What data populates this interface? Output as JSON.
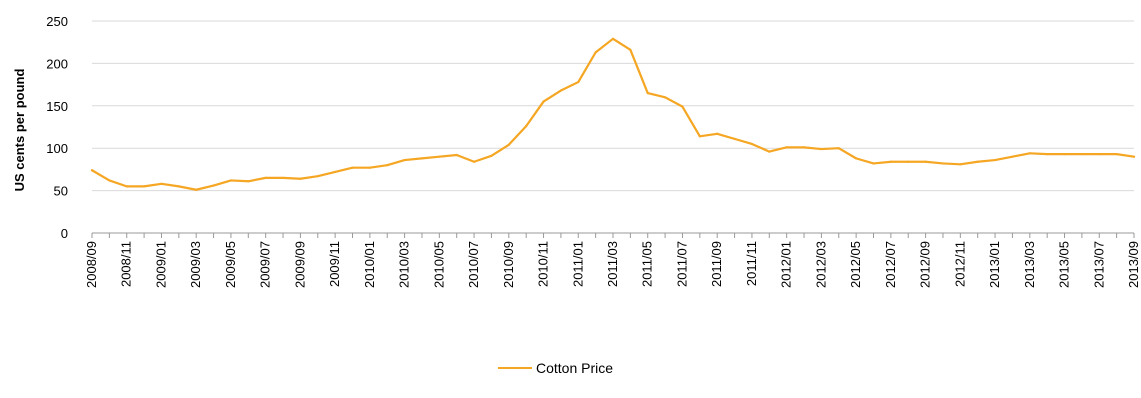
{
  "chart_data": {
    "type": "line",
    "title": "",
    "xlabel": "",
    "ylabel": "US cents per pound",
    "ylim": [
      0,
      250
    ],
    "yticks": [
      0,
      50,
      100,
      150,
      200,
      250
    ],
    "grid": true,
    "legend_position": "bottom",
    "x": [
      "2008/09",
      "2008/10",
      "2008/11",
      "2008/12",
      "2009/01",
      "2009/02",
      "2009/03",
      "2009/04",
      "2009/05",
      "2009/06",
      "2009/07",
      "2009/08",
      "2009/09",
      "2009/10",
      "2009/11",
      "2009/12",
      "2010/01",
      "2010/02",
      "2010/03",
      "2010/04",
      "2010/05",
      "2010/06",
      "2010/07",
      "2010/08",
      "2010/09",
      "2010/10",
      "2010/11",
      "2010/12",
      "2011/01",
      "2011/02",
      "2011/03",
      "2011/04",
      "2011/05",
      "2011/06",
      "2011/07",
      "2011/08",
      "2011/09",
      "2011/10",
      "2011/11",
      "2011/12",
      "2012/01",
      "2012/02",
      "2012/03",
      "2012/04",
      "2012/05",
      "2012/06",
      "2012/07",
      "2012/08",
      "2012/09",
      "2012/10",
      "2012/11",
      "2012/12",
      "2013/01",
      "2013/02",
      "2013/03",
      "2013/04",
      "2013/05",
      "2013/06",
      "2013/07",
      "2013/08",
      "2013/09"
    ],
    "tick_labels": [
      "2008/09",
      "2008/11",
      "2009/01",
      "2009/03",
      "2009/05",
      "2009/07",
      "2009/09",
      "2009/11",
      "2010/01",
      "2010/03",
      "2010/05",
      "2010/07",
      "2010/09",
      "2010/11",
      "2011/01",
      "2011/03",
      "2011/05",
      "2011/07",
      "2011/09",
      "2011/11",
      "2012/01",
      "2012/03",
      "2012/05",
      "2012/07",
      "2012/09",
      "2012/11",
      "2013/01",
      "2013/03",
      "2013/05",
      "2013/07",
      "2013/09"
    ],
    "series": [
      {
        "name": "Cotton Price",
        "color": "#F5A623",
        "values": [
          74,
          62,
          55,
          55,
          58,
          55,
          51,
          56,
          62,
          61,
          65,
          65,
          64,
          67,
          72,
          77,
          77,
          80,
          86,
          88,
          90,
          92,
          84,
          91,
          104,
          126,
          155,
          168,
          178,
          213,
          229,
          216,
          165,
          160,
          149,
          114,
          117,
          111,
          105,
          96,
          101,
          101,
          99,
          100,
          88,
          82,
          84,
          84,
          84,
          82,
          81,
          84,
          86,
          90,
          94,
          93,
          93,
          93,
          93,
          93,
          90
        ]
      }
    ]
  }
}
